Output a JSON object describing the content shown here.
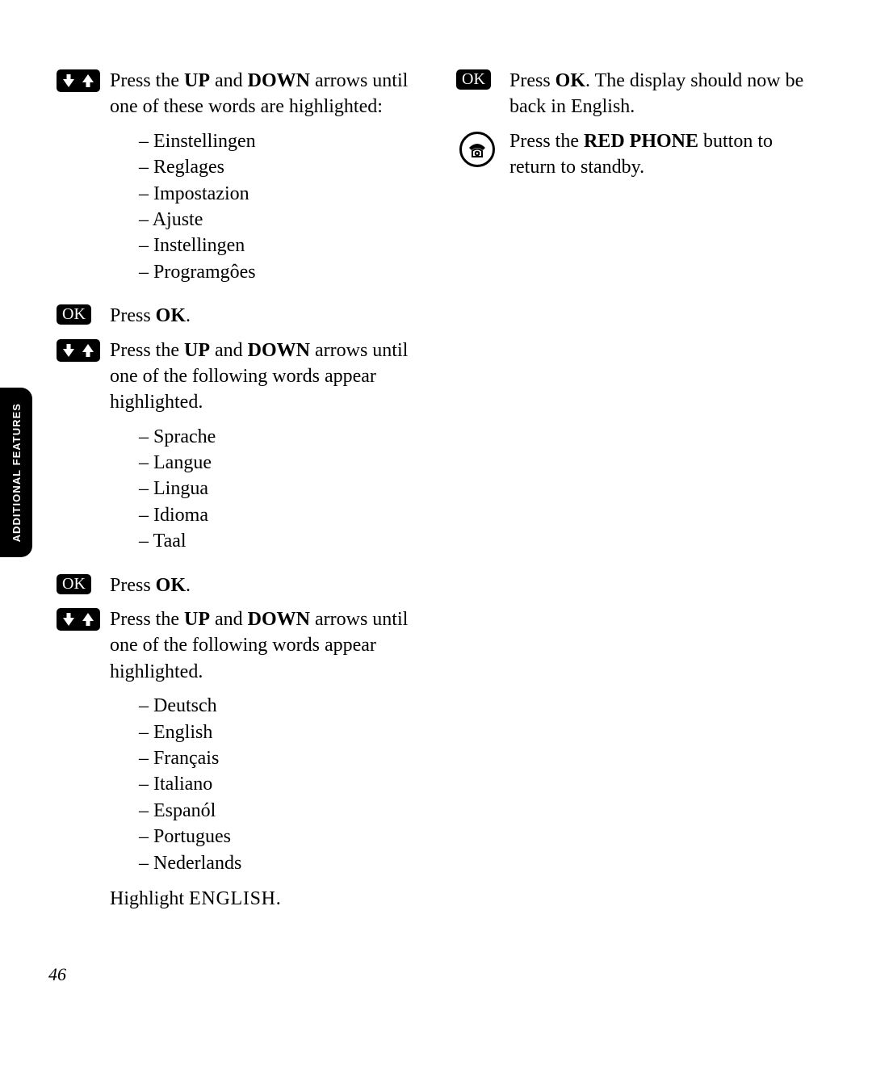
{
  "sideTab": "ADDITIONAL FEATURES",
  "pageNumber": "46",
  "left": {
    "step1": {
      "pre": "Press the ",
      "b1": "UP",
      "mid1": " and ",
      "b2": "DOWN",
      "post": " arrows until one of these words are highlighted:"
    },
    "list1": [
      "Einstellingen",
      "Reglages",
      "Impostazion",
      "Ajuste",
      "Instellingen",
      "Programgôes"
    ],
    "step2": {
      "pre": "Press ",
      "b": "OK",
      "post": "."
    },
    "step3": {
      "pre": "Press the ",
      "b1": "UP",
      "mid1": " and ",
      "b2": "DOWN",
      "post": " arrows until one of the following words appear highlighted."
    },
    "list2": [
      "Sprache",
      "Langue",
      "Lingua",
      "Idioma",
      "Taal"
    ],
    "step4": {
      "pre": "Press ",
      "b": "OK",
      "post": "."
    },
    "step5": {
      "pre": "Press the ",
      "b1": "UP",
      "mid1": " and ",
      "b2": "DOWN",
      "post": " arrows until one of the following words appear highlighted."
    },
    "list3": [
      "Deutsch",
      "English",
      "Français",
      "Italiano",
      "Espanól",
      "Portugues",
      "Nederlands"
    ],
    "highlight": {
      "pre": "Highlight ",
      "word": "ENGLISH",
      "post": "."
    }
  },
  "right": {
    "step1": {
      "pre": "Press ",
      "b": "OK",
      "post": ". The display should now be back in English."
    },
    "step2": {
      "pre": "Press the ",
      "b": "RED PHONE",
      "post": " button to return to standby."
    }
  },
  "okLabel": "OK"
}
